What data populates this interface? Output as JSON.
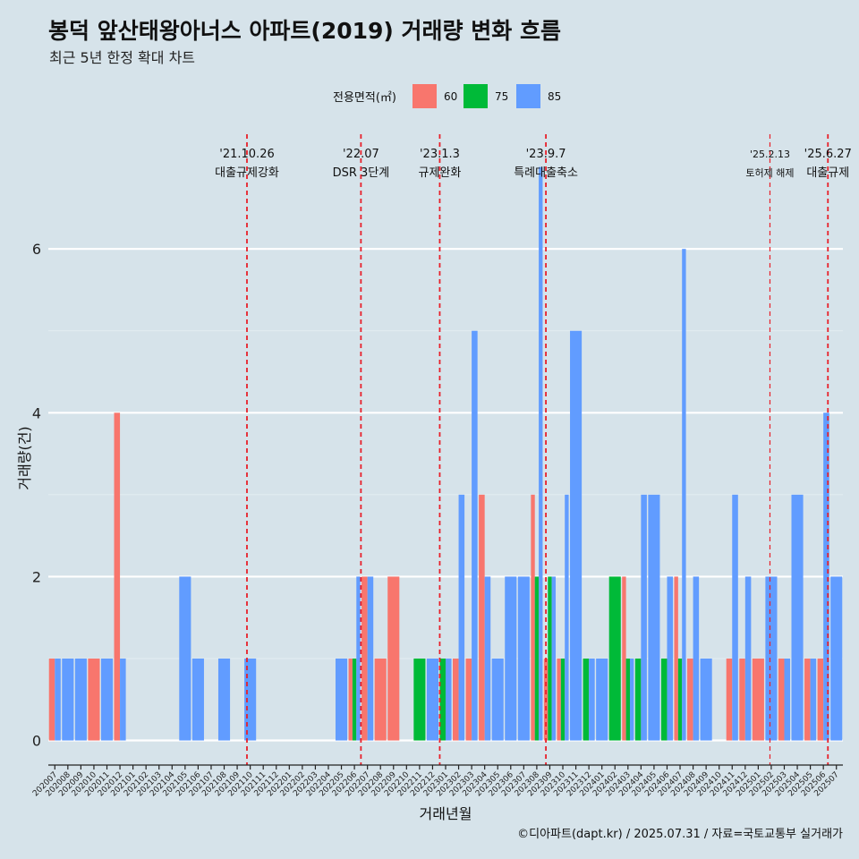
{
  "title": "봉덕 앞산태왕아너스 아파트(2019) 거래량 변화 흐름",
  "subtitle": "최근 5년 한정 확대 차트",
  "caption": "©디아파트(dapt.kr) / 2025.07.31 / 자료=국토교통부 실거래가",
  "colors": {
    "background": "#d6e3ea",
    "s60": "#f8766d",
    "s75": "#00ba38",
    "s85": "#619cff",
    "event_line": "#e8202a"
  },
  "chart_data": {
    "type": "bar",
    "title": "봉덕 앞산태왕아너스 아파트(2019) 거래량 변화 흐름",
    "subtitle": "최근 5년 한정 확대 차트",
    "xlabel": "거래년월",
    "ylabel": "거래량(건)",
    "ylim": [
      -0.3,
      7.4
    ],
    "yticks": [
      0,
      2,
      4,
      6
    ],
    "grid": true,
    "legend_position": "top",
    "legend_title": "전용면적(㎡)",
    "position": "dodge",
    "categories": [
      "202007",
      "202008",
      "202009",
      "202010",
      "202011",
      "202012",
      "202101",
      "202102",
      "202103",
      "202104",
      "202105",
      "202106",
      "202107",
      "202108",
      "202109",
      "202110",
      "202111",
      "202112",
      "202201",
      "202202",
      "202203",
      "202204",
      "202205",
      "202206",
      "202207",
      "202208",
      "202209",
      "202210",
      "202211",
      "202212",
      "202301",
      "202302",
      "202303",
      "202304",
      "202305",
      "202306",
      "202307",
      "202308",
      "202309",
      "202310",
      "202311",
      "202312",
      "202401",
      "202402",
      "202403",
      "202404",
      "202405",
      "202406",
      "202407",
      "202408",
      "202409",
      "202410",
      "202411",
      "202412",
      "202501",
      "202502",
      "202503",
      "202504",
      "202505",
      "202506",
      "202507"
    ],
    "series": [
      {
        "name": "60",
        "color": "#f8766d",
        "values": [
          1,
          0,
          0,
          1,
          0,
          4,
          0,
          0,
          0,
          0,
          0,
          0,
          0,
          0,
          0,
          0,
          0,
          0,
          0,
          0,
          0,
          0,
          0,
          1,
          2,
          1,
          2,
          0,
          0,
          0,
          0,
          1,
          1,
          3,
          0,
          0,
          0,
          3,
          1,
          1,
          0,
          0,
          0,
          0,
          2,
          0,
          0,
          0,
          2,
          1,
          0,
          0,
          1,
          1,
          1,
          0,
          1,
          0,
          1,
          1,
          0
        ]
      },
      {
        "name": "75",
        "color": "#00ba38",
        "values": [
          0,
          0,
          0,
          0,
          0,
          0,
          0,
          0,
          0,
          0,
          0,
          0,
          0,
          0,
          0,
          0,
          0,
          0,
          0,
          0,
          0,
          0,
          0,
          1,
          0,
          0,
          0,
          0,
          1,
          0,
          1,
          0,
          0,
          0,
          0,
          0,
          0,
          2,
          2,
          1,
          0,
          1,
          0,
          2,
          1,
          1,
          0,
          1,
          1,
          0,
          0,
          0,
          0,
          0,
          0,
          0,
          0,
          0,
          0,
          0,
          0
        ]
      },
      {
        "name": "85",
        "color": "#619cff",
        "values": [
          1,
          1,
          1,
          0,
          1,
          1,
          0,
          0,
          0,
          0,
          2,
          1,
          0,
          1,
          0,
          1,
          0,
          0,
          0,
          0,
          0,
          0,
          1,
          2,
          2,
          0,
          0,
          0,
          0,
          1,
          1,
          3,
          5,
          2,
          1,
          2,
          2,
          7,
          2,
          3,
          5,
          1,
          1,
          0,
          1,
          3,
          3,
          2,
          6,
          2,
          1,
          0,
          3,
          2,
          0,
          2,
          1,
          3,
          1,
          4,
          2
        ]
      }
    ],
    "events": [
      {
        "date": "'21.10.26",
        "label": "대출규제강화",
        "at": "202110",
        "offset": 0.25,
        "emphasis": true
      },
      {
        "date": "'22.07",
        "label": "DSR 3단계",
        "at": "202207",
        "offset": 0.0,
        "emphasis": true
      },
      {
        "date": "'23.1.3",
        "label": "규제완화",
        "at": "202301",
        "offset": 0.05,
        "emphasis": true
      },
      {
        "date": "'23.9.7",
        "label": "특례대출축소",
        "at": "202309",
        "offset": 0.2,
        "emphasis": true
      },
      {
        "date": "'25.2.13",
        "label": "토허제 해제",
        "at": "202502",
        "offset": 0.4,
        "emphasis": false
      },
      {
        "date": "'25.6.27",
        "label": "대출규제",
        "at": "202506",
        "offset": 0.85,
        "emphasis": true
      }
    ]
  }
}
